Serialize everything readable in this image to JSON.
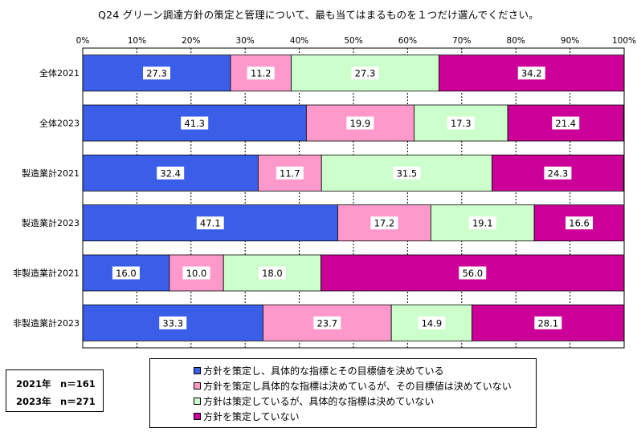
{
  "chart_data": {
    "type": "bar",
    "stacked": true,
    "orientation": "horizontal",
    "title": "Q24 グリーン調達方針の策定と管理について、最も当てはまるものを１つだけ選んでください。",
    "categories": [
      "全体2021",
      "全体2023",
      "製造業計2021",
      "製造業計2023",
      "非製造業計2021",
      "非製造業計2023"
    ],
    "series": [
      {
        "name": "方針を策定し、具体的な指標とその目標値を決めている",
        "color": "#3b5ee8",
        "values": [
          "27.3",
          "41.3",
          "32.4",
          "47.1",
          "16.0",
          "33.3"
        ]
      },
      {
        "name": "方針を策定し具体的な指標は決めているが、その目標値は決めていない",
        "color": "#ff99cc",
        "values": [
          "11.2",
          "19.9",
          "11.7",
          "17.2",
          "10.0",
          "23.7"
        ]
      },
      {
        "name": "方針は策定しているが、具体的な指標は決めていない",
        "color": "#ccffcc",
        "values": [
          "27.3",
          "17.3",
          "31.5",
          "19.1",
          "18.0",
          "14.9"
        ]
      },
      {
        "name": "方針を策定していない",
        "color": "#cc0099",
        "values": [
          "34.2",
          "21.4",
          "24.3",
          "16.6",
          "56.0",
          "28.1"
        ]
      }
    ],
    "x_ticks": [
      "0%",
      "10%",
      "20%",
      "30%",
      "40%",
      "50%",
      "60%",
      "70%",
      "80%",
      "90%",
      "100%"
    ],
    "xlim": [
      0,
      100
    ],
    "grid": true,
    "legend_position": "bottom"
  },
  "sample_sizes": [
    "2021年　n＝161",
    "2023年　n＝271"
  ]
}
